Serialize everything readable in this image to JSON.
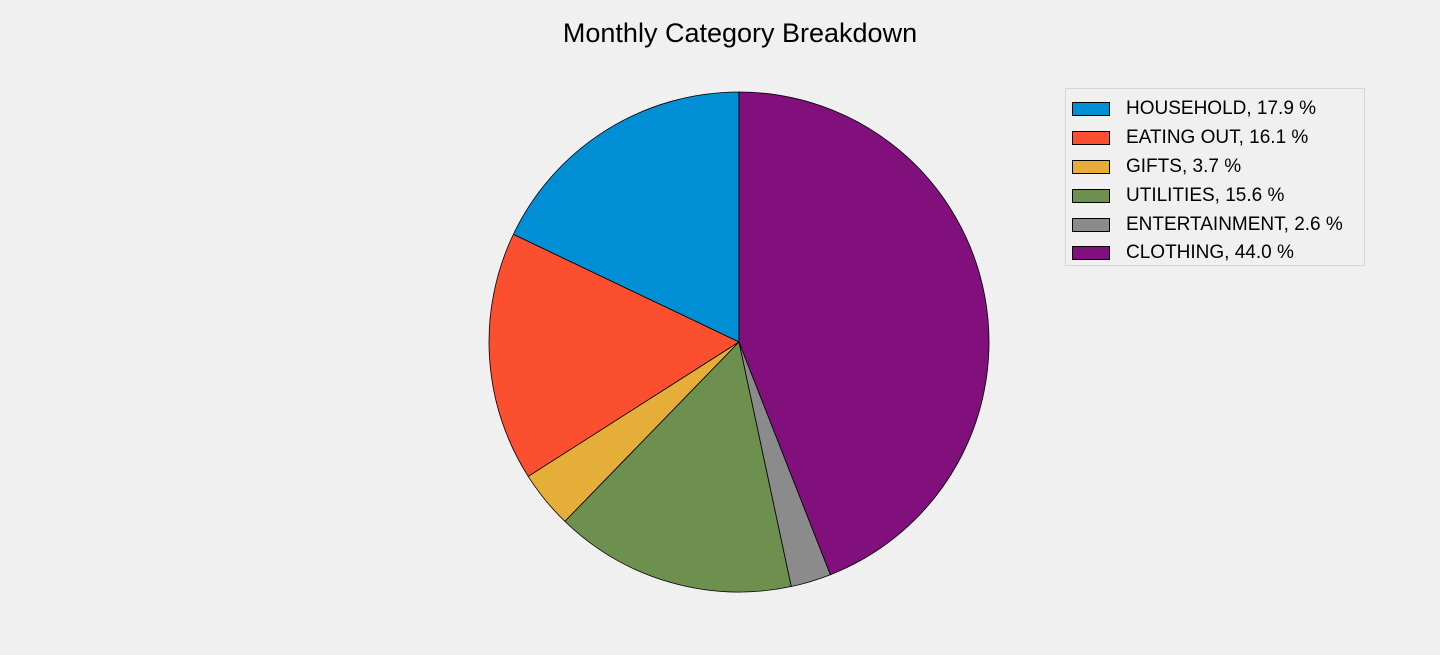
{
  "chart_data": {
    "type": "pie",
    "title": "Monthly Category Breakdown",
    "legend_position": "top-right",
    "start_angle": 90,
    "direction": "counterclockwise",
    "slices": [
      {
        "label": "HOUSEHOLD",
        "value": 17.9,
        "legend": "HOUSEHOLD, 17.9 %",
        "color": "#008fd5"
      },
      {
        "label": "EATING OUT",
        "value": 16.1,
        "legend": "EATING OUT, 16.1 %",
        "color": "#fc4f30"
      },
      {
        "label": "GIFTS",
        "value": 3.7,
        "legend": "GIFTS, 3.7 %",
        "color": "#e5ae38"
      },
      {
        "label": "UTILITIES",
        "value": 15.6,
        "legend": "UTILITIES, 15.6 %",
        "color": "#6d904f"
      },
      {
        "label": "ENTERTAINMENT",
        "value": 2.6,
        "legend": "ENTERTAINMENT, 2.6 %",
        "color": "#8b8b8b"
      },
      {
        "label": "CLOTHING",
        "value": 44.0,
        "legend": "CLOTHING, 44.0 %",
        "color": "#810f7c"
      }
    ]
  }
}
